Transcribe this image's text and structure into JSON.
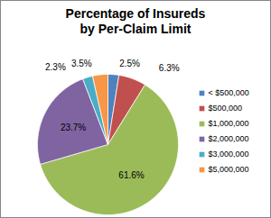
{
  "chart_data": {
    "type": "pie",
    "title": "Percentage of Insureds by Per-Claim Limit",
    "categories": [
      "< $500,000",
      "$500,000",
      "$1,000,000",
      "$2,000,000",
      "$3,000,000",
      "$5,000,000"
    ],
    "values": [
      2.5,
      6.3,
      61.6,
      23.7,
      2.3,
      3.5
    ],
    "value_labels": [
      "2.5%",
      "6.3%",
      "61.6%",
      "23.7%",
      "2.3%",
      "3.5%"
    ],
    "colors": [
      "#4f81bd",
      "#c0504d",
      "#9bbb59",
      "#8064a2",
      "#4bacc6",
      "#f79646"
    ],
    "data_labels": true,
    "legend": "right"
  }
}
